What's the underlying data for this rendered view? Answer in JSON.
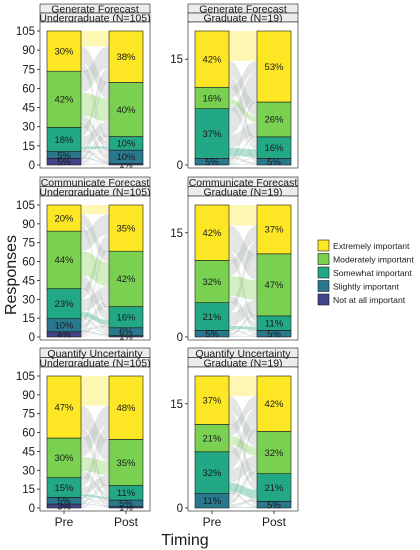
{
  "chart_data": {
    "type": "bar",
    "subtype": "stacked-bar-alluvial",
    "xlabel": "Timing",
    "ylabel": "Responses",
    "x_categories": [
      "Pre",
      "Post"
    ],
    "legend": {
      "placement": "right",
      "entries": [
        "Extremely important",
        "Moderately important",
        "Somewhat important",
        "Slightly important",
        "Not at all important"
      ],
      "colors": [
        "#FDE725",
        "#7AD151",
        "#22A884",
        "#2A788E",
        "#414487"
      ]
    },
    "panels": [
      {
        "row_label": "Generate Forecast",
        "col_label": "Undergraduate (N=105)",
        "n": 105,
        "yticks": [
          0,
          15,
          30,
          45,
          60,
          75,
          90,
          105
        ],
        "ylim": [
          0,
          105
        ],
        "pre": [
          5,
          5,
          18,
          42,
          30
        ],
        "post": [
          1,
          10,
          10,
          40,
          38
        ],
        "pre_labels": [
          "5%",
          "5%",
          "18%",
          "42%",
          "30%"
        ],
        "post_labels": [
          "1%",
          "10%",
          "10%",
          "40%",
          "38%"
        ]
      },
      {
        "row_label": "Generate Forecast",
        "col_label": "Graduate (N=19)",
        "n": 19,
        "yticks": [
          0,
          15
        ],
        "ylim": [
          0,
          19
        ],
        "pre": [
          0,
          5,
          37,
          16,
          42
        ],
        "post": [
          0,
          5,
          16,
          26,
          53
        ],
        "pre_labels": [
          "",
          "5%",
          "37%",
          "16%",
          "42%"
        ],
        "post_labels": [
          "",
          "5%",
          "16%",
          "26%",
          "53%"
        ]
      },
      {
        "row_label": "Communicate Forecast",
        "col_label": "Undergraduate (N=105)",
        "n": 105,
        "yticks": [
          0,
          15,
          30,
          45,
          60,
          75,
          90,
          105
        ],
        "ylim": [
          0,
          105
        ],
        "pre": [
          4,
          10,
          23,
          44,
          20
        ],
        "post": [
          1,
          6,
          16,
          42,
          35
        ],
        "pre_labels": [
          "4%",
          "10%",
          "23%",
          "44%",
          "20%"
        ],
        "post_labels": [
          "1%",
          "6%",
          "16%",
          "42%",
          "35%"
        ]
      },
      {
        "row_label": "Communicate Forecast",
        "col_label": "Graduate (N=19)",
        "n": 19,
        "yticks": [
          0,
          15
        ],
        "ylim": [
          0,
          19
        ],
        "pre": [
          0,
          5,
          21,
          32,
          42
        ],
        "post": [
          0,
          5,
          11,
          47,
          37
        ],
        "pre_labels": [
          "",
          "5%",
          "21%",
          "32%",
          "42%"
        ],
        "post_labels": [
          "",
          "5%",
          "11%",
          "47%",
          "37%"
        ]
      },
      {
        "row_label": "Quantify Uncertainty",
        "col_label": "Undergraduate (N=105)",
        "n": 105,
        "yticks": [
          0,
          15,
          30,
          45,
          60,
          75,
          90,
          105
        ],
        "ylim": [
          0,
          105
        ],
        "pre": [
          3,
          5,
          15,
          30,
          47
        ],
        "post": [
          1,
          5,
          11,
          35,
          48
        ],
        "pre_labels": [
          "3%",
          "5%",
          "15%",
          "30%",
          "47%"
        ],
        "post_labels": [
          "1%",
          "5%",
          "11%",
          "35%",
          "48%"
        ]
      },
      {
        "row_label": "Quantify Uncertainty",
        "col_label": "Graduate (N=19)",
        "n": 19,
        "yticks": [
          0,
          15
        ],
        "ylim": [
          0,
          19
        ],
        "pre": [
          0,
          11,
          32,
          21,
          37
        ],
        "post": [
          0,
          5,
          21,
          32,
          42
        ],
        "pre_labels": [
          "",
          "11%",
          "32%",
          "21%",
          "37%"
        ],
        "post_labels": [
          "",
          "5%",
          "21%",
          "32%",
          "42%"
        ]
      }
    ]
  }
}
